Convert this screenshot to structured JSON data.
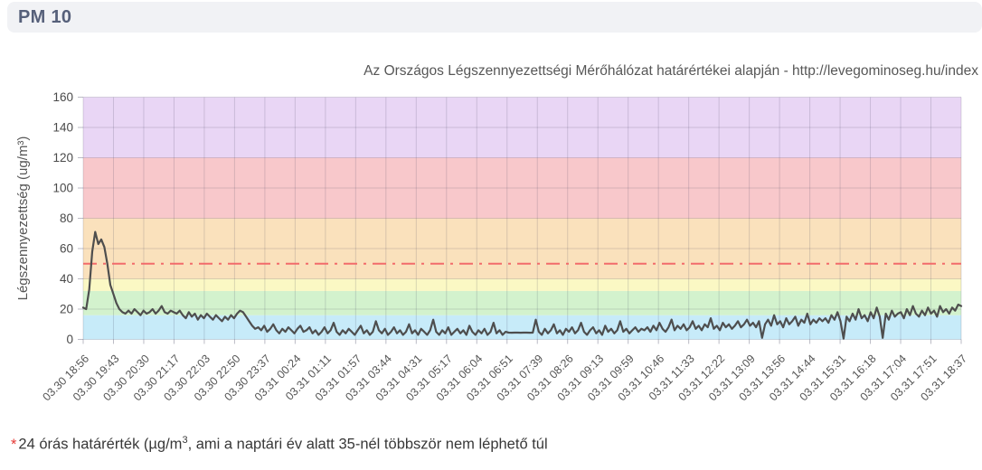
{
  "header": {
    "title": "PM 10"
  },
  "subtitle": "Az Országos Légszennyezettségi Mérőhálózat határértékei alapján - http://levegominoseg.hu/index",
  "footnote": {
    "star": "*",
    "text_pre": "24 órás határérték (µg/m",
    "sup": "3",
    "text_post": ", ami a naptári év alatt 35-nél többször nem léphető túl"
  },
  "chart_data": {
    "type": "line",
    "title": "PM 10",
    "xlabel": "",
    "ylabel": "Légszennyezettség (ug/m³)",
    "ylim": [
      0,
      160
    ],
    "yticks": [
      0,
      20,
      40,
      60,
      80,
      100,
      120,
      140,
      160
    ],
    "grid": true,
    "legend": "none",
    "x_labels": [
      "03.30 18:56",
      "03.30 19:43",
      "03.30 20:30",
      "03.30 21:17",
      "03.30 22:03",
      "03.30 22:50",
      "03.30 23:37",
      "03.31 00:24",
      "03.31 01:11",
      "03.31 01:57",
      "03.31 03:44",
      "03.31 04:31",
      "03.31 05:17",
      "03.31 06:04",
      "03.31 06:51",
      "03.31 07:39",
      "03.31 08:26",
      "03.31 09:13",
      "03.31 09:59",
      "03.31 10:46",
      "03.31 11:33",
      "03.31 12:22",
      "03.31 13:09",
      "03.31 13:56",
      "03.31 14:44",
      "03.31 15:31",
      "03.31 16:18",
      "03.31 17:04",
      "03.31 17:51",
      "03.31 18:37"
    ],
    "bands": [
      {
        "from": 0,
        "to": 16,
        "color": "#c7ebf9"
      },
      {
        "from": 16,
        "to": 32,
        "color": "#d3f2cd"
      },
      {
        "from": 32,
        "to": 40,
        "color": "#fbf8c4"
      },
      {
        "from": 40,
        "to": 80,
        "color": "#fae1bc"
      },
      {
        "from": 80,
        "to": 120,
        "color": "#f8c8cb"
      },
      {
        "from": 120,
        "to": 160,
        "color": "#e9d6f5"
      }
    ],
    "limit_line": {
      "value": 50,
      "color": "#f26b6b",
      "style": "dash-dot",
      "meaning": "24 órás határérték"
    },
    "series": [
      {
        "name": "PM10",
        "color": "#4e4e4e",
        "values": [
          21,
          20,
          33,
          58,
          71,
          63,
          66,
          61,
          50,
          36,
          30,
          24,
          20,
          18,
          17,
          19,
          17,
          20,
          18,
          16,
          19,
          17,
          18,
          20,
          17,
          19,
          22,
          18,
          17,
          19,
          18,
          17,
          19,
          16,
          14,
          18,
          15,
          17,
          13,
          16,
          14,
          17,
          15,
          13,
          16,
          14,
          12,
          15,
          13,
          16,
          14,
          17,
          19,
          18,
          15,
          12,
          9,
          7,
          8,
          6,
          9,
          5,
          7,
          10,
          6,
          4,
          7,
          5,
          8,
          6,
          4,
          7,
          9,
          5,
          6,
          8,
          4,
          6,
          3,
          5,
          8,
          4,
          6,
          11,
          5,
          3,
          6,
          4,
          7,
          5,
          3,
          6,
          9,
          4,
          6,
          3,
          5,
          12,
          6,
          4,
          7,
          3,
          5,
          8,
          4,
          6,
          3,
          5,
          10,
          4,
          6,
          3,
          7,
          5,
          3,
          6,
          13,
          5,
          3,
          6,
          4,
          8,
          3,
          5,
          7,
          4,
          6,
          3,
          9,
          5,
          3,
          6,
          4,
          7,
          3,
          5,
          11,
          4,
          6,
          3,
          5,
          4.5,
          4.4,
          4.5,
          4.5,
          4.4,
          4.5,
          4.5,
          4.4,
          4.5,
          13,
          5,
          3,
          7,
          4,
          6,
          10,
          4,
          6,
          3,
          7,
          5,
          8,
          4,
          6,
          11,
          5,
          3,
          6,
          8,
          4,
          6,
          3,
          9,
          5,
          7,
          4,
          6,
          12,
          5,
          7,
          4,
          6,
          8,
          5,
          7,
          6,
          8,
          5,
          9,
          6,
          11,
          7,
          5,
          8,
          13,
          6,
          9,
          7,
          10,
          6,
          8,
          12,
          7,
          9,
          6,
          10,
          8,
          14,
          7,
          9,
          6,
          11,
          8,
          10,
          7,
          9,
          12,
          8,
          10,
          13,
          9,
          11,
          8,
          12,
          1,
          10,
          13,
          9,
          16,
          10,
          12,
          8,
          14,
          10,
          12,
          15,
          9,
          13,
          11,
          17,
          10,
          13,
          11,
          14,
          12,
          14,
          11,
          16,
          13,
          18,
          12,
          0.5,
          15,
          12,
          17,
          13,
          20,
          14,
          16,
          12,
          18,
          14,
          21,
          15,
          1,
          17,
          13,
          19,
          15,
          17,
          18,
          14,
          20,
          16,
          22,
          17,
          15,
          19,
          16,
          21,
          17,
          19,
          15,
          22,
          18,
          20,
          17,
          21,
          19,
          23,
          22
        ]
      }
    ]
  },
  "colors": {
    "header_bg": "#f1f2f5",
    "header_text": "#56607a",
    "subtitle_text": "#575757",
    "axis_text": "#4a4a4a",
    "series": "#4e4e4e",
    "limit": "#f26b6b",
    "footnote_star": "#e53935"
  }
}
